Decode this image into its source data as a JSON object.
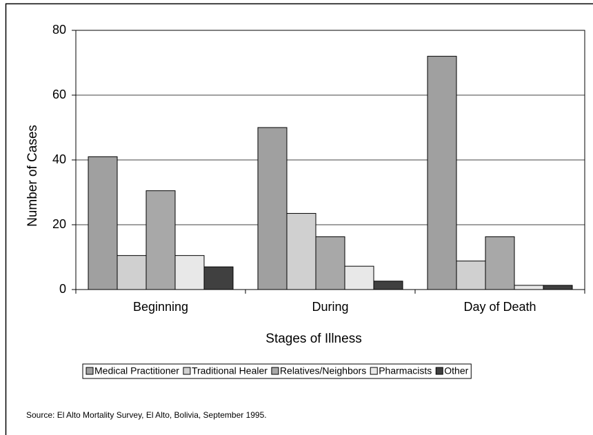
{
  "chart_data": {
    "type": "bar",
    "x_label": "Stages of Illness",
    "y_label": "Number of Cases",
    "source": "Source: El Alto Mortality Survey,  El Alto, Bolivia, September 1995.",
    "categories": [
      "Beginning",
      "During",
      "Day of Death"
    ],
    "series": [
      {
        "name": "Medical Practitioner",
        "color": "#a0a0a0",
        "values": [
          41,
          50,
          72
        ]
      },
      {
        "name": "Traditional Healer",
        "color": "#d0d0d0",
        "values": [
          10.5,
          23.5,
          8.8
        ]
      },
      {
        "name": "Relatives/Neighbors",
        "color": "#a8a8a8",
        "values": [
          30.5,
          16.3,
          16.3
        ]
      },
      {
        "name": "Pharmacists",
        "color": "#e8e8e8",
        "values": [
          10.5,
          7.2,
          1.3
        ]
      },
      {
        "name": "Other",
        "color": "#404040",
        "values": [
          7,
          2.6,
          1.3
        ]
      }
    ],
    "ylim": [
      0,
      80
    ],
    "yticks": [
      0,
      20,
      40,
      60,
      80
    ],
    "grid": true,
    "legend": "bottom"
  }
}
